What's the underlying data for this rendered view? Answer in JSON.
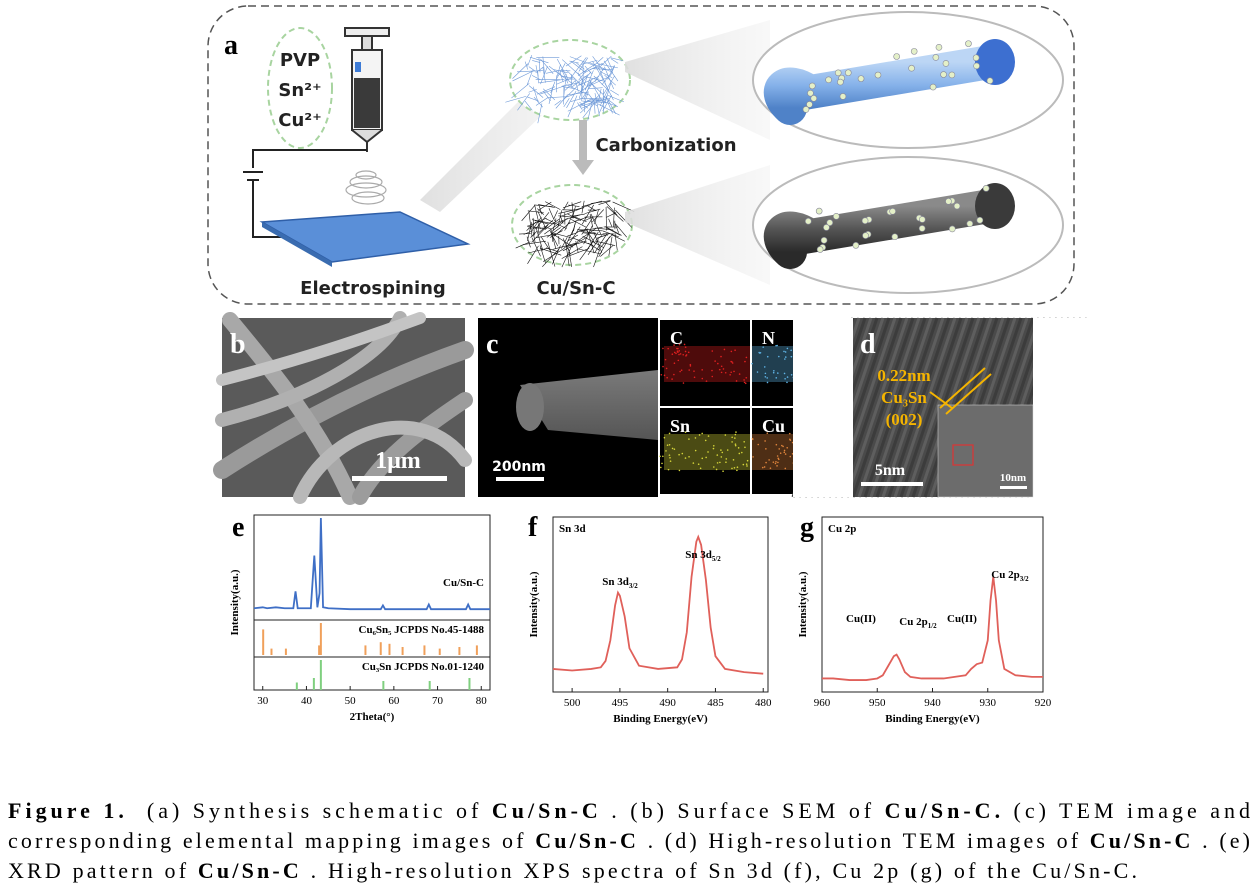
{
  "panel_a": {
    "label": "a",
    "precursors": [
      "PVP",
      "Sn²⁺",
      "Cu²⁺"
    ],
    "process": "Carbonization",
    "method": "Electrospining",
    "product": "Cu/Sn-C"
  },
  "panel_b": {
    "label": "b",
    "scale": "1μm"
  },
  "panel_c": {
    "label": "c",
    "scale": "200nm",
    "elements": [
      "C",
      "N",
      "Sn",
      "Cu"
    ]
  },
  "panel_d": {
    "label": "d",
    "spacing": "0.22nm",
    "phase": "Cu₃Sn",
    "plane": "(002)",
    "scale": "5nm",
    "inset_scale": "10nm"
  },
  "panel_labels": [
    "e",
    "f",
    "g"
  ],
  "chart_data": [
    {
      "type": "line",
      "xlabel": "2Theta(°)",
      "ylabel": "Intensity(a.u.)",
      "xlim": [
        28,
        82
      ],
      "xticks": [
        30,
        40,
        50,
        60,
        70,
        80
      ],
      "ylim": [
        0,
        100
      ],
      "series": [
        {
          "name": "Cu/Sn-C",
          "color": "#3f6fc6",
          "mark": "line",
          "x": [
            28,
            30,
            31,
            33,
            35,
            37,
            37.5,
            38,
            41,
            41.8,
            42.5,
            43,
            43.3,
            43.8,
            45,
            50,
            57,
            57.5,
            58,
            67.5,
            68,
            68.5,
            76.5,
            77,
            77.5,
            82
          ],
          "values": [
            4,
            5,
            4,
            5,
            4,
            4,
            22,
            4,
            4,
            60,
            5,
            20,
            100,
            5,
            4,
            3,
            3,
            7,
            3,
            3,
            8,
            3,
            3,
            8,
            3,
            3
          ]
        },
        {
          "name": "Cu₆Sn₅ JCPDS No.45-1488",
          "color": "#f0a05a",
          "mark": "sticks",
          "x": [
            30.1,
            32,
            35.3,
            42.9,
            43.3,
            53.5,
            57,
            59,
            62,
            67,
            70.5,
            75,
            79
          ],
          "values": [
            80,
            20,
            20,
            30,
            100,
            30,
            40,
            35,
            25,
            30,
            20,
            25,
            30
          ]
        },
        {
          "name": "Cu₃Sn JCPDS No.01-1240",
          "color": "#7fcf7f",
          "mark": "sticks",
          "x": [
            37.8,
            41.7,
            43.3,
            57.6,
            68.2,
            77.3
          ],
          "values": [
            25,
            40,
            100,
            30,
            30,
            40
          ]
        }
      ]
    },
    {
      "type": "line",
      "title": "Sn 3d",
      "xlabel": "Binding Energy(eV)",
      "ylabel": "Intensity(a.u.)",
      "xlim": [
        502,
        479.5
      ],
      "xticks": [
        500,
        495,
        490,
        485,
        480
      ],
      "ylim": [
        0,
        100
      ],
      "series": [
        {
          "color": "#e0605a",
          "mark": "line",
          "x": [
            502,
            500,
            498,
            497,
            496.5,
            496,
            495.5,
            495.2,
            495,
            494.5,
            494,
            493,
            491,
            489,
            488.5,
            488,
            487.5,
            487,
            486.8,
            486.5,
            486,
            485.5,
            485,
            484,
            482,
            480
          ],
          "values": [
            12,
            11,
            12,
            13,
            17,
            30,
            52,
            60,
            58,
            45,
            25,
            14,
            12,
            13,
            18,
            35,
            70,
            92,
            95,
            90,
            68,
            38,
            20,
            12,
            10,
            9
          ]
        }
      ],
      "annotations": [
        {
          "text": "Sn 3d",
          "sub": "3/2"
        },
        {
          "text": "Sn 3d",
          "sub": "5/2"
        }
      ]
    },
    {
      "type": "line",
      "title": "Cu 2p",
      "xlabel": "Binding Energy(eV)",
      "ylabel": "Intensity(a.u.)",
      "xlim": [
        960,
        920
      ],
      "xticks": [
        960,
        950,
        940,
        930,
        920
      ],
      "ylim": [
        0,
        100
      ],
      "series": [
        {
          "color": "#e0605a",
          "mark": "line",
          "x": [
            960,
            958,
            955,
            952,
            950,
            949,
            948,
            947,
            946.5,
            946,
            945,
            944,
            942,
            940,
            938,
            936,
            934,
            933,
            932,
            931,
            930,
            929.5,
            929,
            928.5,
            928,
            927,
            925,
            922,
            920
          ],
          "values": [
            6,
            6,
            5,
            5,
            6,
            8,
            14,
            20,
            21,
            18,
            10,
            7,
            6,
            6,
            6,
            7,
            8,
            12,
            15,
            16,
            30,
            55,
            70,
            55,
            30,
            12,
            8,
            7,
            7
          ]
        }
      ],
      "annotations": [
        {
          "text": "Cu(II)"
        },
        {
          "text": "Cu 2p",
          "sub": "1/2"
        },
        {
          "text": "Cu(II)"
        },
        {
          "text": "Cu 2p",
          "sub": "3/2"
        }
      ]
    }
  ],
  "caption": {
    "lines": [
      [
        {
          "text": "Figure 1.",
          "bold": true
        },
        {
          "text": "  (a) Synthesis schematic of ",
          "bold": false
        },
        {
          "text": "Cu/Sn-C",
          "bold": true
        },
        {
          "text": " . (b) Surface SEM of ",
          "bold": false
        },
        {
          "text": "Cu/Sn-C.",
          "bold": true
        },
        {
          "text": " (c) TEM image and",
          "bold": false
        }
      ],
      [
        {
          "text": "corresponding elemental mapping images of ",
          "bold": false
        },
        {
          "text": "Cu/Sn-C",
          "bold": true
        },
        {
          "text": " . (d) High-resolution TEM images of ",
          "bold": false
        },
        {
          "text": "Cu/Sn-C",
          "bold": true
        },
        {
          "text": " . (e)",
          "bold": false
        }
      ],
      [
        {
          "text": "XRD pattern of ",
          "bold": false
        },
        {
          "text": "Cu/Sn-C",
          "bold": true
        },
        {
          "text": " . High-resolution XPS spectra of Sn 3d (f), Cu 2p (g) of the Cu/Sn-C.",
          "bold": false
        }
      ]
    ]
  }
}
